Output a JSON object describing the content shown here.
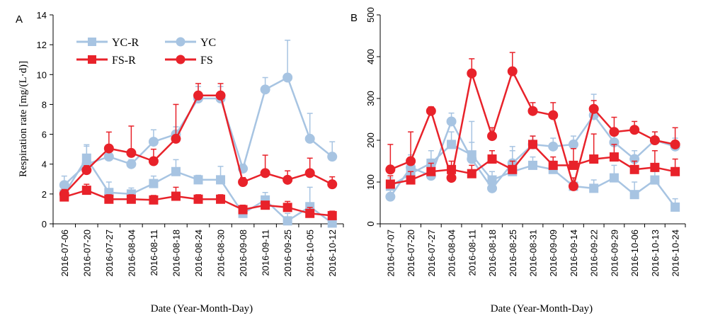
{
  "colors": {
    "light": "#a7c4e2",
    "red": "#e8222a",
    "axis": "#000000"
  },
  "chart_data": [
    {
      "panel_label": "A",
      "type": "line",
      "xlabel": "Date (Year-Month-Day)",
      "ylabel": "Respiration rate [mg/(L·d)]",
      "ylim": [
        0,
        14
      ],
      "yticks": [
        0,
        2,
        4,
        6,
        8,
        10,
        12,
        14
      ],
      "categories": [
        "2016-07-06",
        "2016-07-20",
        "2016-07-27",
        "2016-08-04",
        "2016-08-11",
        "2016-08-18",
        "2016-08-24",
        "2016-08-30",
        "2016-09-08",
        "2016-09-11",
        "2016-09-25",
        "2016-10-05",
        "2016-10-12"
      ],
      "legend": {
        "placement": "top-left"
      },
      "series": [
        {
          "name": "YC-R",
          "marker": "square",
          "color": "#a7c4e2",
          "values": [
            2.0,
            4.4,
            2.1,
            2.0,
            2.7,
            3.5,
            2.95,
            2.95,
            0.7,
            1.6,
            0.2,
            1.15,
            0.05
          ],
          "errors": [
            0.3,
            0.8,
            0.7,
            0.4,
            0.5,
            0.8,
            0.3,
            0.9,
            0.2,
            0.5,
            0.5,
            1.3,
            0.7
          ]
        },
        {
          "name": "YC",
          "marker": "circle",
          "color": "#a7c4e2",
          "values": [
            2.6,
            4.0,
            4.5,
            4.0,
            5.5,
            6.0,
            8.4,
            8.4,
            3.7,
            9.0,
            9.8,
            5.7,
            4.5
          ],
          "errors": [
            0.6,
            1.3,
            0.4,
            0.3,
            0.8,
            0.5,
            0.8,
            0.8,
            0.3,
            0.8,
            2.5,
            1.7,
            1.0
          ]
        },
        {
          "name": "FS-R",
          "marker": "square",
          "color": "#e8222a",
          "values": [
            1.8,
            2.25,
            1.65,
            1.65,
            1.6,
            1.85,
            1.65,
            1.65,
            0.95,
            1.25,
            1.1,
            0.7,
            0.55
          ],
          "errors": [
            0.3,
            0.4,
            0.3,
            0.3,
            0.3,
            0.6,
            0.3,
            0.3,
            0.3,
            0.2,
            0.4,
            0.4,
            0.3
          ]
        },
        {
          "name": "FS",
          "marker": "circle",
          "color": "#e8222a",
          "values": [
            2.0,
            3.6,
            5.05,
            4.75,
            4.2,
            5.7,
            8.6,
            8.6,
            2.8,
            3.4,
            2.95,
            3.4,
            2.65
          ],
          "errors": [
            0.3,
            0.3,
            1.1,
            1.8,
            0.8,
            2.3,
            0.8,
            0.8,
            0.3,
            1.2,
            0.6,
            1.0,
            0.5
          ]
        }
      ]
    },
    {
      "panel_label": "B",
      "type": "line",
      "xlabel": "Date (Year-Month-Day)",
      "ylabel": "",
      "ylim": [
        0,
        500
      ],
      "yticks": [
        0,
        100,
        200,
        300,
        400,
        500
      ],
      "categories": [
        "2016-07-07",
        "2016-07-20",
        "2016-07-27",
        "2016-08-04",
        "2016-08-11",
        "2016-08-18",
        "2016-08-25",
        "2016-08-31",
        "2016-09-09",
        "2016-09-14",
        "2016-09-22",
        "2016-09-29",
        "2016-10-06",
        "2016-10-13",
        "2016-10-24"
      ],
      "series": [
        {
          "name": "YC-R",
          "marker": "square",
          "color": "#a7c4e2",
          "values": [
            90,
            120,
            145,
            190,
            165,
            105,
            125,
            140,
            130,
            90,
            85,
            110,
            70,
            105,
            40
          ],
          "errors": [
            20,
            20,
            30,
            30,
            80,
            20,
            60,
            20,
            20,
            20,
            20,
            30,
            30,
            20,
            20
          ]
        },
        {
          "name": "YC",
          "marker": "circle",
          "color": "#a7c4e2",
          "values": [
            65,
            135,
            115,
            245,
            155,
            85,
            145,
            190,
            185,
            190,
            260,
            195,
            155,
            200,
            185
          ],
          "errors": [
            20,
            30,
            40,
            20,
            40,
            20,
            30,
            20,
            20,
            20,
            50,
            20,
            20,
            20,
            20
          ]
        },
        {
          "name": "FS-R",
          "marker": "square",
          "color": "#e8222a",
          "values": [
            95,
            105,
            125,
            130,
            120,
            155,
            130,
            190,
            140,
            140,
            155,
            160,
            130,
            135,
            125
          ],
          "errors": [
            20,
            20,
            20,
            20,
            20,
            20,
            20,
            20,
            20,
            40,
            60,
            30,
            20,
            40,
            30
          ]
        },
        {
          "name": "FS",
          "marker": "circle",
          "color": "#e8222a",
          "values": [
            130,
            150,
            270,
            110,
            360,
            210,
            365,
            270,
            260,
            90,
            275,
            220,
            225,
            200,
            190
          ],
          "errors": [
            60,
            70,
            10,
            20,
            35,
            20,
            45,
            20,
            30,
            20,
            20,
            35,
            20,
            20,
            40
          ]
        }
      ]
    }
  ]
}
